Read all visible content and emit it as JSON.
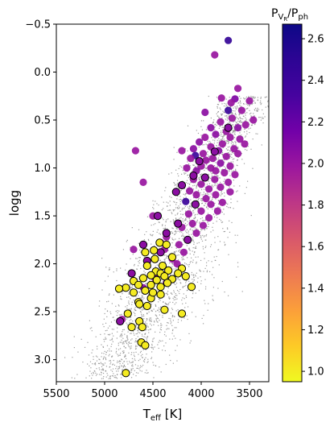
{
  "chart_data": {
    "type": "scatter",
    "xlabel_main": "T",
    "xlabel_sub": "eff",
    "xlabel_tail": " [K]",
    "ylabel": "logg",
    "xlim": [
      5500,
      3300
    ],
    "ylim": [
      3.23,
      -0.5
    ],
    "x_ticks": [
      5500,
      5000,
      4500,
      4000,
      3500
    ],
    "y_ticks": [
      -0.5,
      0.0,
      0.5,
      1.0,
      1.5,
      2.0,
      2.5,
      3.0
    ],
    "x_tick_labels": [
      "5500",
      "5000",
      "4500",
      "4000",
      "3500"
    ],
    "y_tick_labels": [
      "−0.5",
      "0.0",
      "0.5",
      "1.0",
      "1.5",
      "2.0",
      "2.5",
      "3.0"
    ],
    "background_color": "#8c8c8c",
    "colorbar": {
      "title_main": "P",
      "title_sub": "V",
      "title_subsub": "R",
      "title_slash": "/P",
      "title_sub2": "ph",
      "range": [
        0.95,
        2.67
      ],
      "ticks": [
        1.0,
        1.2,
        1.4,
        1.6,
        1.8,
        2.0,
        2.2,
        2.4,
        2.6
      ],
      "tick_labels": [
        "1.0",
        "1.2",
        "1.4",
        "1.6",
        "1.8",
        "2.0",
        "2.2",
        "2.4",
        "2.6"
      ],
      "colormap": "plasma_r"
    },
    "series": [
      {
        "points": [
          [
            3720,
            -0.33,
            2.45
          ],
          [
            3860,
            -0.18,
            2.0
          ],
          [
            3620,
            0.17,
            2.0
          ],
          [
            3650,
            0.28,
            2.1
          ],
          [
            3790,
            0.27,
            2.0
          ],
          [
            3690,
            0.32,
            2.0
          ],
          [
            3960,
            0.42,
            2.05
          ],
          [
            3720,
            0.4,
            2.4
          ],
          [
            3500,
            0.3,
            2.0
          ],
          [
            3580,
            0.4,
            2.0
          ],
          [
            3680,
            0.48,
            2.0
          ],
          [
            3800,
            0.52,
            2.0
          ],
          [
            3540,
            0.55,
            2.0
          ],
          [
            3620,
            0.58,
            2.05
          ],
          [
            3900,
            0.58,
            2.05
          ],
          [
            3740,
            0.62,
            2.0
          ],
          [
            3460,
            0.5,
            2.0
          ],
          [
            3850,
            0.65,
            2.05
          ],
          [
            3960,
            0.68,
            2.0
          ],
          [
            3700,
            0.68,
            2.0
          ],
          [
            3600,
            0.7,
            2.0
          ],
          [
            4020,
            0.73,
            2.05
          ],
          [
            3780,
            0.75,
            2.0
          ],
          [
            3550,
            0.75,
            2.0
          ],
          [
            3900,
            0.78,
            2.0
          ],
          [
            4080,
            0.8,
            2.05
          ],
          [
            3660,
            0.8,
            2.0
          ],
          [
            3820,
            0.82,
            2.05
          ],
          [
            4200,
            0.82,
            2.0
          ],
          [
            3980,
            0.85,
            2.0
          ],
          [
            4060,
            0.87,
            2.4
          ],
          [
            3740,
            0.88,
            2.0
          ],
          [
            3620,
            0.85,
            2.0
          ],
          [
            3880,
            0.9,
            2.0
          ],
          [
            4110,
            0.9,
            2.0
          ],
          [
            3950,
            0.92,
            2.0
          ],
          [
            3800,
            0.95,
            2.05
          ],
          [
            4000,
            0.98,
            2.0
          ],
          [
            3700,
            0.98,
            2.0
          ],
          [
            3900,
            1.0,
            2.0
          ],
          [
            4150,
            1.0,
            2.0
          ],
          [
            3850,
            1.03,
            2.0
          ],
          [
            4050,
            1.03,
            2.05
          ],
          [
            3760,
            1.05,
            2.0
          ],
          [
            3650,
            1.07,
            2.0
          ],
          [
            3960,
            1.1,
            2.05
          ],
          [
            4080,
            1.12,
            2.0
          ],
          [
            3860,
            1.12,
            2.0
          ],
          [
            3720,
            1.15,
            2.0
          ],
          [
            4000,
            1.17,
            2.0
          ],
          [
            3800,
            1.2,
            2.0
          ],
          [
            3920,
            1.22,
            2.0
          ],
          [
            4120,
            1.24,
            2.0
          ],
          [
            3700,
            1.25,
            2.0
          ],
          [
            3850,
            1.28,
            2.0
          ],
          [
            4050,
            1.28,
            2.0
          ],
          [
            3950,
            1.32,
            2.0
          ],
          [
            4160,
            1.35,
            2.4
          ],
          [
            3780,
            1.36,
            2.0
          ],
          [
            3900,
            1.38,
            2.0
          ],
          [
            4600,
            1.15,
            2.0
          ],
          [
            4680,
            0.82,
            2.0
          ],
          [
            3830,
            1.45,
            2.0
          ],
          [
            4000,
            1.45,
            2.0
          ],
          [
            4130,
            1.48,
            2.0
          ],
          [
            3920,
            1.52,
            2.0
          ],
          [
            4500,
            1.5,
            2.0
          ],
          [
            4090,
            1.58,
            2.0
          ],
          [
            3980,
            1.6,
            2.0
          ],
          [
            4200,
            1.62,
            2.0
          ],
          [
            4050,
            1.68,
            2.0
          ],
          [
            4360,
            1.72,
            2.0
          ],
          [
            4420,
            1.78,
            2.0
          ],
          [
            4230,
            1.8,
            2.0
          ],
          [
            4380,
            1.85,
            2.0
          ],
          [
            4180,
            1.88,
            2.0
          ],
          [
            4300,
            1.95,
            2.0
          ],
          [
            4470,
            2.08,
            2.0
          ],
          [
            4600,
            2.25,
            2.05
          ],
          [
            4480,
            2.15,
            2.0
          ],
          [
            4250,
            2.0,
            2.0
          ],
          [
            4820,
            2.58,
            2.0
          ],
          [
            4700,
            1.85,
            2.0
          ],
          [
            4360,
            2.2,
            2.0
          ]
        ],
        "outlined_points": [
          [
            3720,
            0.58,
            2.05
          ],
          [
            3860,
            0.83,
            2.05
          ],
          [
            4020,
            0.93,
            2.05
          ],
          [
            4080,
            1.08,
            2.05
          ],
          [
            3960,
            1.1,
            2.05
          ],
          [
            4200,
            1.18,
            2.05
          ],
          [
            4260,
            1.25,
            2.05
          ],
          [
            4060,
            1.38,
            2.05
          ],
          [
            4450,
            1.5,
            2.05
          ],
          [
            4240,
            1.58,
            2.05
          ],
          [
            4360,
            1.68,
            2.05
          ],
          [
            4600,
            1.8,
            2.05
          ],
          [
            4560,
            1.97,
            2.05
          ],
          [
            4420,
            1.88,
            2.05
          ],
          [
            4140,
            1.75,
            2.05
          ],
          [
            4720,
            2.1,
            2.05
          ],
          [
            4840,
            2.6,
            2.05
          ],
          [
            4580,
            1.88,
            1.0
          ],
          [
            4430,
            1.78,
            1.0
          ],
          [
            4360,
            1.8,
            1.0
          ],
          [
            4490,
            1.86,
            1.0
          ],
          [
            4300,
            1.93,
            1.0
          ],
          [
            4480,
            1.95,
            1.0
          ],
          [
            4400,
            2.02,
            1.0
          ],
          [
            4200,
            2.05,
            1.0
          ],
          [
            4560,
            2.02,
            1.0
          ],
          [
            4470,
            2.08,
            1.0
          ],
          [
            4340,
            2.07,
            1.0
          ],
          [
            4420,
            2.1,
            1.0
          ],
          [
            4240,
            2.1,
            1.0
          ],
          [
            4520,
            2.12,
            1.0
          ],
          [
            4380,
            2.13,
            1.0
          ],
          [
            4600,
            2.15,
            1.0
          ],
          [
            4300,
            2.16,
            1.0
          ],
          [
            4460,
            2.17,
            1.0
          ],
          [
            4700,
            2.18,
            1.0
          ],
          [
            4350,
            2.2,
            1.0
          ],
          [
            4520,
            2.22,
            1.0
          ],
          [
            4650,
            2.22,
            1.0
          ],
          [
            4780,
            2.25,
            1.0
          ],
          [
            4420,
            2.24,
            1.0
          ],
          [
            4580,
            2.28,
            1.0
          ],
          [
            4700,
            2.3,
            1.0
          ],
          [
            4420,
            2.32,
            1.0
          ],
          [
            4520,
            2.36,
            1.0
          ],
          [
            4650,
            2.4,
            1.0
          ],
          [
            4560,
            2.44,
            1.0
          ],
          [
            4760,
            2.52,
            1.0
          ],
          [
            4380,
            2.48,
            1.0
          ],
          [
            4200,
            2.52,
            1.0
          ],
          [
            4640,
            2.6,
            1.0
          ],
          [
            4720,
            2.66,
            1.0
          ],
          [
            4610,
            2.66,
            1.0
          ],
          [
            4850,
            2.26,
            1.0
          ],
          [
            4100,
            2.24,
            1.0
          ],
          [
            4160,
            2.13,
            1.0
          ],
          [
            4620,
            2.82,
            1.0
          ],
          [
            4580,
            2.85,
            1.0
          ],
          [
            4780,
            3.14,
            1.0
          ],
          [
            4640,
            2.42,
            1.0
          ],
          [
            4500,
            2.3,
            1.0
          ]
        ]
      }
    ]
  }
}
